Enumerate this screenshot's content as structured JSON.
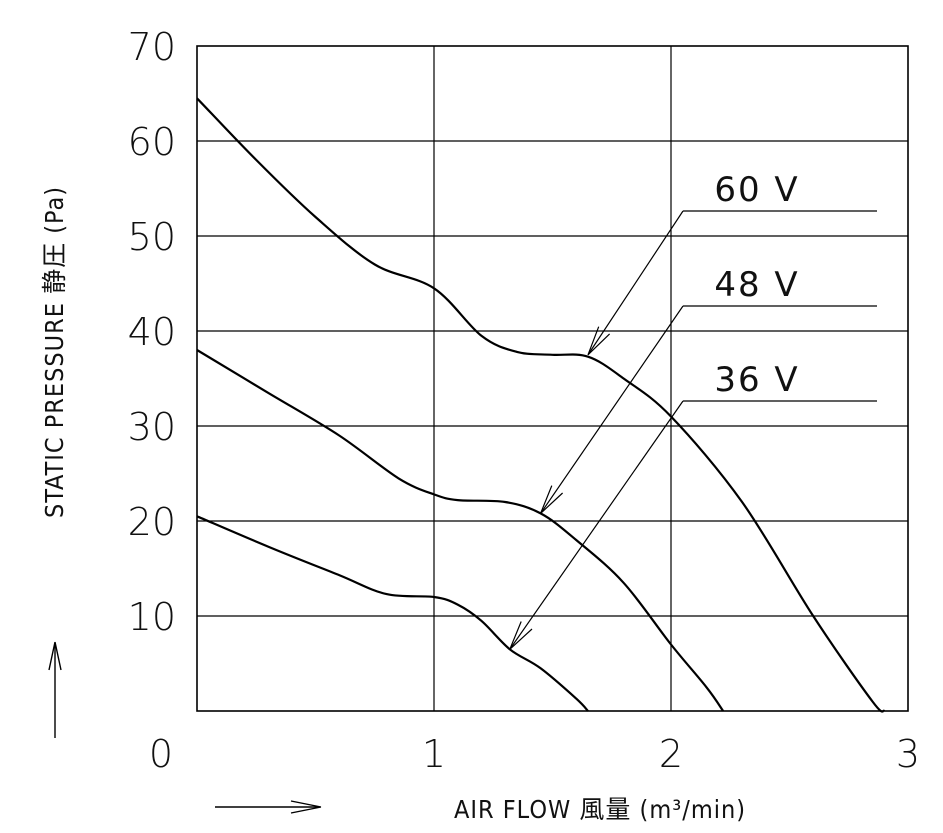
{
  "chart_data": {
    "type": "line",
    "xlabel": "AIR FLOW 風量 (m³/min)",
    "ylabel": "STATIC PRESSURE 静圧 (Pa)",
    "xlim": [
      0,
      3
    ],
    "ylim": [
      0,
      70
    ],
    "x_ticks": [
      "0",
      "1",
      "2",
      "3"
    ],
    "y_ticks": [
      "10",
      "20",
      "30",
      "40",
      "50",
      "60",
      "70"
    ],
    "grid": true,
    "series": [
      {
        "name": "60 V",
        "label_anchor": [
          1.65,
          37.5
        ],
        "points": [
          [
            0,
            64.5
          ],
          [
            0.25,
            58
          ],
          [
            0.5,
            52
          ],
          [
            0.75,
            47
          ],
          [
            1.0,
            44.5
          ],
          [
            1.2,
            39.5
          ],
          [
            1.35,
            37.8
          ],
          [
            1.5,
            37.5
          ],
          [
            1.65,
            37.3
          ],
          [
            1.8,
            35
          ],
          [
            2.0,
            31
          ],
          [
            2.3,
            22
          ],
          [
            2.6,
            10
          ],
          [
            2.85,
            1
          ],
          [
            2.9,
            0
          ]
        ]
      },
      {
        "name": "48 V",
        "label_anchor": [
          1.45,
          20.8
        ],
        "points": [
          [
            0,
            38
          ],
          [
            0.3,
            33.5
          ],
          [
            0.6,
            29
          ],
          [
            0.85,
            24.5
          ],
          [
            1.0,
            22.8
          ],
          [
            1.1,
            22.2
          ],
          [
            1.3,
            22
          ],
          [
            1.45,
            20.8
          ],
          [
            1.6,
            18
          ],
          [
            1.8,
            13.5
          ],
          [
            2.0,
            7
          ],
          [
            2.15,
            2.5
          ],
          [
            2.22,
            0
          ]
        ]
      },
      {
        "name": "36 V",
        "label_anchor": [
          1.32,
          6.5
        ],
        "points": [
          [
            0,
            20.5
          ],
          [
            0.3,
            17.3
          ],
          [
            0.6,
            14.3
          ],
          [
            0.8,
            12.3
          ],
          [
            1.0,
            12
          ],
          [
            1.1,
            11.2
          ],
          [
            1.2,
            9.5
          ],
          [
            1.32,
            6.5
          ],
          [
            1.45,
            4.5
          ],
          [
            1.6,
            1.3
          ],
          [
            1.65,
            0
          ]
        ]
      }
    ]
  }
}
